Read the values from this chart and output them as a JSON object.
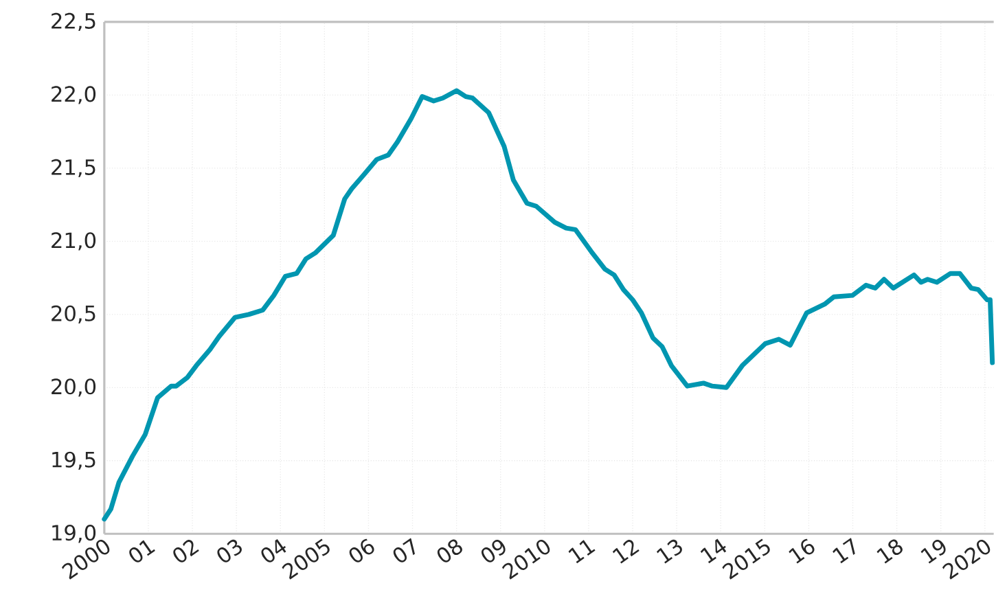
{
  "chart_data": {
    "type": "line",
    "x": [
      2000.0,
      2000.15,
      2000.33,
      2000.64,
      2000.93,
      2001.21,
      2001.52,
      2001.63,
      2001.89,
      2002.09,
      2002.4,
      2002.61,
      2002.97,
      2003.28,
      2003.6,
      2003.85,
      2004.11,
      2004.37,
      2004.58,
      2004.79,
      2005.2,
      2005.46,
      2005.62,
      2005.88,
      2006.19,
      2006.45,
      2006.66,
      2006.97,
      2007.22,
      2007.48,
      2007.69,
      2008.0,
      2008.21,
      2008.36,
      2008.73,
      2009.08,
      2009.29,
      2009.6,
      2009.81,
      2010.23,
      2010.49,
      2010.7,
      2011.06,
      2011.37,
      2011.58,
      2011.79,
      2012.0,
      2012.2,
      2012.46,
      2012.67,
      2012.88,
      2013.24,
      2013.61,
      2013.81,
      2014.13,
      2014.49,
      2015.01,
      2015.32,
      2015.58,
      2015.95,
      2016.36,
      2016.57,
      2016.99,
      2017.3,
      2017.51,
      2017.71,
      2017.92,
      2018.39,
      2018.55,
      2018.7,
      2018.91,
      2019.22,
      2019.43,
      2019.69,
      2019.85,
      2020.05,
      2020.12,
      2020.17
    ],
    "series": [
      {
        "color": "#0096b0",
        "values": [
          19.1,
          19.17,
          19.35,
          19.53,
          19.68,
          19.93,
          20.01,
          20.01,
          20.07,
          20.15,
          20.26,
          20.35,
          20.48,
          20.5,
          20.53,
          20.63,
          20.76,
          20.78,
          20.88,
          20.92,
          21.04,
          21.29,
          21.36,
          21.45,
          21.56,
          21.59,
          21.68,
          21.84,
          21.99,
          21.96,
          21.98,
          22.03,
          21.99,
          21.98,
          21.88,
          21.65,
          21.42,
          21.26,
          21.24,
          21.13,
          21.09,
          21.08,
          20.93,
          20.81,
          20.77,
          20.67,
          20.6,
          20.51,
          20.34,
          20.28,
          20.15,
          20.01,
          20.03,
          20.01,
          20.0,
          20.15,
          20.3,
          20.33,
          20.29,
          20.51,
          20.57,
          20.62,
          20.63,
          20.7,
          20.68,
          20.74,
          20.68,
          20.77,
          20.72,
          20.74,
          20.72,
          20.78,
          20.78,
          20.68,
          20.67,
          20.6,
          20.6,
          20.17
        ]
      }
    ],
    "xlim": [
      2000,
      2020.2
    ],
    "xticks": [
      {
        "value": 2000,
        "label": "2000"
      },
      {
        "value": 2001,
        "label": "01"
      },
      {
        "value": 2002,
        "label": "02"
      },
      {
        "value": 2003,
        "label": "03"
      },
      {
        "value": 2004,
        "label": "04"
      },
      {
        "value": 2005,
        "label": "2005"
      },
      {
        "value": 2006,
        "label": "06"
      },
      {
        "value": 2007,
        "label": "07"
      },
      {
        "value": 2008,
        "label": "08"
      },
      {
        "value": 2009,
        "label": "09"
      },
      {
        "value": 2010,
        "label": "2010"
      },
      {
        "value": 2011,
        "label": "11"
      },
      {
        "value": 2012,
        "label": "12"
      },
      {
        "value": 2013,
        "label": "13"
      },
      {
        "value": 2014,
        "label": "14"
      },
      {
        "value": 2015,
        "label": "2015"
      },
      {
        "value": 2016,
        "label": "16"
      },
      {
        "value": 2017,
        "label": "17"
      },
      {
        "value": 2018,
        "label": "18"
      },
      {
        "value": 2019,
        "label": "19"
      },
      {
        "value": 2020,
        "label": "2020"
      }
    ],
    "ylim": [
      19.0,
      22.5
    ],
    "yticks": [
      {
        "value": 19.0,
        "label": "19,0"
      },
      {
        "value": 19.5,
        "label": "19,5"
      },
      {
        "value": 20.0,
        "label": "20,0"
      },
      {
        "value": 20.5,
        "label": "20,5"
      },
      {
        "value": 21.0,
        "label": "21,0"
      },
      {
        "value": 21.5,
        "label": "21,5"
      },
      {
        "value": 22.0,
        "label": "22,0"
      },
      {
        "value": 22.5,
        "label": "22,5"
      }
    ],
    "grid": true,
    "marker": "none",
    "line_style": "solid"
  }
}
